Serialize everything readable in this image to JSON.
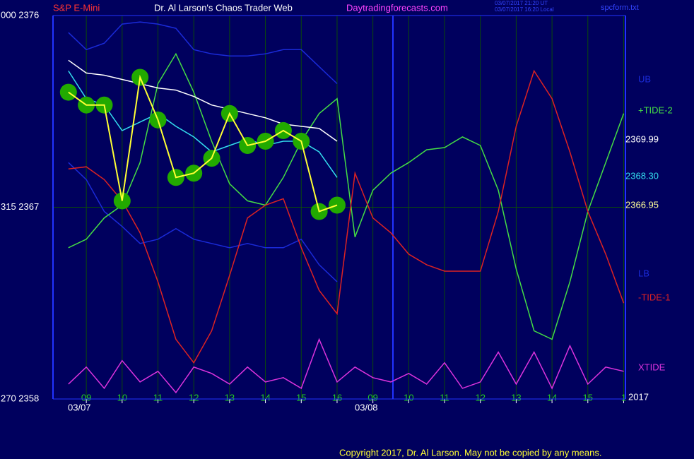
{
  "chart_data": {
    "type": "line",
    "header": {
      "symbol": "S&P E-Mini",
      "title": "Dr. Al Larson's Chaos Trader Web",
      "site": "Daytradingforecasts.com",
      "stamp_ut": "03/07/2017 21:20 UT",
      "stamp_local": "03/07/2017 16:20 Local",
      "file": "spcform.txt"
    },
    "dates": [
      "03/07",
      "03/08"
    ],
    "year": "2017",
    "copyright": "Copyright 2017, Dr. Al Larson. May not be copied by any means.",
    "xlim": [
      8.07,
      24.05
    ],
    "xticks": [
      {
        "value": 9,
        "label": "09"
      },
      10,
      11,
      12,
      13,
      14,
      15,
      16,
      {
        "value": 17,
        "label": "09"
      },
      {
        "value": 18,
        "label": "10"
      },
      {
        "value": 19,
        "label": "11"
      },
      {
        "value": 20,
        "label": "12"
      },
      {
        "value": 21,
        "label": "13"
      },
      {
        "value": 22,
        "label": "14"
      },
      {
        "value": 23,
        "label": "15"
      },
      {
        "value": 24,
        "label": "1"
      }
    ],
    "ylim": [
      2358,
      2376
    ],
    "yticks": [
      {
        "value": 2358,
        "label": "270  2358"
      },
      {
        "value": 2367,
        "label": "315  2367"
      },
      {
        "value": 2376,
        "label": "000  2376"
      }
    ],
    "grid": true,
    "x": [
      8.5,
      9,
      9.5,
      10,
      10.5,
      11,
      11.5,
      12,
      12.5,
      13,
      13.5,
      14,
      14.5,
      15,
      15.5,
      16,
      16.5,
      17,
      17.5,
      18,
      18.5,
      19,
      19.5,
      20,
      20.5,
      21,
      21.5,
      22,
      22.5,
      23,
      23.5,
      24
    ],
    "series": [
      {
        "name": "UB",
        "color": "#1a2ad8",
        "values": [
          2375.2,
          2374.4,
          2374.7,
          2375.6,
          2375.7,
          2375.6,
          2375.4,
          2374.4,
          2374.2,
          2374.1,
          2374.1,
          2374.2,
          2374.4,
          2374.4,
          2373.6,
          2372.8,
          null,
          null,
          null,
          null,
          null,
          null,
          null,
          null,
          null,
          null,
          null,
          null,
          null,
          null,
          null,
          null
        ]
      },
      {
        "name": "LB",
        "color": "#1a2ad8",
        "values": [
          2369.1,
          2368.3,
          2366.8,
          2366.1,
          2365.3,
          2365.5,
          2366.0,
          2365.5,
          2365.3,
          2365.1,
          2365.3,
          2365.1,
          2365.1,
          2365.5,
          2364.3,
          2363.5,
          null,
          null,
          null,
          null,
          null,
          null,
          null,
          null,
          null,
          null,
          null,
          null,
          null,
          null,
          null,
          null
        ]
      },
      {
        "name": "+TIDE-2",
        "color": "#44dd44",
        "values": [
          2365.1,
          2365.5,
          2366.5,
          2367.1,
          2369.1,
          2372.8,
          2374.2,
          2372.4,
          2370.1,
          2368.1,
          2367.3,
          2367.1,
          2368.4,
          2370.1,
          2371.4,
          2372.1,
          2365.6,
          2367.8,
          2368.6,
          2369.1,
          2369.7,
          2369.8,
          2370.3,
          2369.9,
          2367.8,
          2364.1,
          2361.2,
          2360.8,
          2363.5,
          2366.8,
          2369.1,
          2371.4
        ]
      },
      {
        "name": "-TIDE-1",
        "color": "#dd2222",
        "values": [
          2368.8,
          2368.9,
          2368.3,
          2367.3,
          2365.8,
          2363.5,
          2360.8,
          2359.7,
          2361.2,
          2363.8,
          2366.5,
          2367.1,
          2367.4,
          2365.1,
          2363.1,
          2362.0,
          2368.6,
          2366.5,
          2365.8,
          2364.8,
          2364.3,
          2364.0,
          2364.0,
          2364.0,
          2366.8,
          2370.8,
          2373.4,
          2372.1,
          2369.6,
          2366.8,
          2364.8,
          2362.5
        ]
      },
      {
        "name": "XTIDE",
        "color": "#dd33dd",
        "values": [
          2358.7,
          2359.5,
          2358.5,
          2359.8,
          2358.8,
          2359.3,
          2358.3,
          2359.5,
          2359.2,
          2358.7,
          2359.5,
          2358.8,
          2359.0,
          2358.5,
          2360.8,
          2358.8,
          2359.5,
          2359.0,
          2358.8,
          2359.2,
          2358.7,
          2359.7,
          2358.5,
          2358.8,
          2360.2,
          2358.7,
          2360.2,
          2358.5,
          2360.5,
          2358.7,
          2359.5,
          2359.3
        ]
      },
      {
        "values": [
          2373.9,
          2373.3,
          2373.2,
          2373.0,
          2372.8,
          2372.6,
          2372.5,
          2372.2,
          2371.8,
          2371.6,
          2371.4,
          2371.2,
          2370.9,
          2370.8,
          2370.7,
          2370.1,
          null,
          null,
          null,
          null,
          null,
          null,
          null,
          null,
          null,
          null,
          null,
          null,
          null,
          null,
          null,
          null
        ],
        "color": "#ffffff"
      },
      {
        "values": [
          2373.4,
          2372.1,
          2371.8,
          2370.6,
          2371.0,
          2371.4,
          2370.8,
          2370.3,
          2369.6,
          2369.9,
          2370.2,
          2369.9,
          2370.1,
          2370.1,
          2369.6,
          2368.4,
          null,
          null,
          null,
          null,
          null,
          null,
          null,
          null,
          null,
          null,
          null,
          null,
          null,
          null,
          null,
          null
        ],
        "color": "#33ddee"
      },
      {
        "values": [
          2372.4,
          2371.8,
          2371.8,
          2367.3,
          2373.1,
          2371.1,
          2368.4,
          2368.6,
          2369.3,
          2371.4,
          2369.9,
          2370.1,
          2370.6,
          2370.1,
          2366.8,
          2367.1,
          null,
          null,
          null,
          null,
          null,
          null,
          null,
          null,
          null,
          null,
          null,
          null,
          null,
          null,
          null,
          null
        ],
        "color": "#ffff33",
        "glow": "#22aa00"
      }
    ],
    "price_labels": [
      {
        "value": 2369.99,
        "color": "#ffffff"
      },
      {
        "value": {
          "value": 2368.3,
          "label": "2368.30"
        },
        "color": "#33ddee"
      },
      {
        "value": 2366.95,
        "color": "#ffff99"
      }
    ]
  }
}
